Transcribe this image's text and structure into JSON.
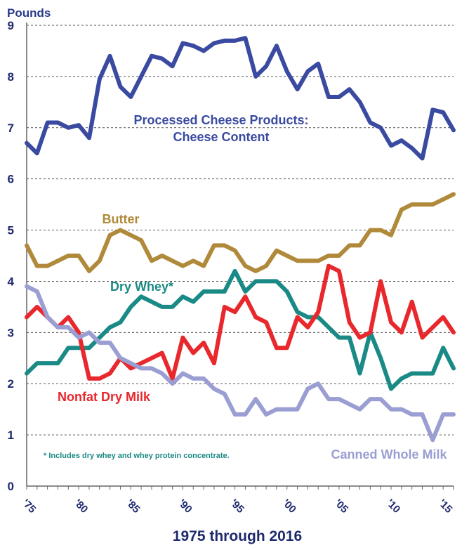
{
  "chart_data": {
    "type": "line",
    "ylabel": "Pounds",
    "xlabel": "1975 through 2016",
    "ylim": [
      0,
      9
    ],
    "xlim": [
      1975,
      2016
    ],
    "grid": true,
    "yticks": [
      "0",
      "1",
      "2",
      "3",
      "4",
      "5",
      "6",
      "7",
      "8",
      "9"
    ],
    "xticks": [
      {
        "value": 1975,
        "label": "'75"
      },
      {
        "value": 1980,
        "label": "'80"
      },
      {
        "value": 1985,
        "label": "'85"
      },
      {
        "value": 1990,
        "label": "'90"
      },
      {
        "value": 1995,
        "label": "'95"
      },
      {
        "value": 2000,
        "label": "'00"
      },
      {
        "value": 2005,
        "label": "'05"
      },
      {
        "value": 2010,
        "label": "'10"
      },
      {
        "value": 2015,
        "label": "'15"
      }
    ],
    "x": [
      1975,
      1976,
      1977,
      1978,
      1979,
      1980,
      1981,
      1982,
      1983,
      1984,
      1985,
      1986,
      1987,
      1988,
      1989,
      1990,
      1991,
      1992,
      1993,
      1994,
      1995,
      1996,
      1997,
      1998,
      1999,
      2000,
      2001,
      2002,
      2003,
      2004,
      2005,
      2006,
      2007,
      2008,
      2009,
      2010,
      2011,
      2012,
      2013,
      2014,
      2015,
      2016
    ],
    "series": [
      {
        "name": "Processed Cheese Products: Cheese Content",
        "label_lines": [
          "Processed Cheese Products:",
          "Cheese Content"
        ],
        "color": "#3a4aa0",
        "values": [
          6.7,
          6.5,
          7.1,
          7.1,
          7.0,
          7.05,
          6.8,
          7.95,
          8.4,
          7.8,
          7.6,
          8.0,
          8.4,
          8.35,
          8.2,
          8.65,
          8.6,
          8.5,
          8.65,
          8.7,
          8.7,
          8.75,
          8.0,
          8.2,
          8.6,
          8.1,
          7.75,
          8.1,
          8.25,
          7.6,
          7.6,
          7.75,
          7.5,
          7.1,
          7.0,
          6.65,
          6.75,
          6.6,
          6.4,
          7.35,
          7.3,
          6.95
        ]
      },
      {
        "name": "Butter",
        "label_lines": [
          "Butter"
        ],
        "color": "#b08a3a",
        "values": [
          4.7,
          4.3,
          4.3,
          4.4,
          4.5,
          4.5,
          4.2,
          4.4,
          4.9,
          5.0,
          4.9,
          4.8,
          4.4,
          4.5,
          4.4,
          4.3,
          4.4,
          4.3,
          4.7,
          4.7,
          4.6,
          4.3,
          4.2,
          4.3,
          4.6,
          4.5,
          4.4,
          4.4,
          4.4,
          4.5,
          4.5,
          4.7,
          4.7,
          5.0,
          5.0,
          4.9,
          5.4,
          5.5,
          5.5,
          5.5,
          5.6,
          5.7
        ]
      },
      {
        "name": "Dry Whey*",
        "label_lines": [
          "Dry Whey*"
        ],
        "color": "#1a8a86",
        "values": [
          2.2,
          2.4,
          2.4,
          2.4,
          2.7,
          2.7,
          2.7,
          2.9,
          3.1,
          3.2,
          3.5,
          3.7,
          3.6,
          3.5,
          3.5,
          3.7,
          3.6,
          3.8,
          3.8,
          3.8,
          4.2,
          3.8,
          4.0,
          4.0,
          4.0,
          3.8,
          3.4,
          3.3,
          3.3,
          3.1,
          2.9,
          2.9,
          2.2,
          3.0,
          2.5,
          1.9,
          2.1,
          2.2,
          2.2,
          2.2,
          2.7,
          2.3
        ]
      },
      {
        "name": "Nonfat Dry Milk",
        "label_lines": [
          "Nonfat Dry Milk"
        ],
        "color": "#e8282c",
        "values": [
          3.3,
          3.5,
          3.3,
          3.1,
          3.3,
          3.0,
          2.1,
          2.1,
          2.2,
          2.5,
          2.3,
          2.4,
          2.5,
          2.6,
          2.1,
          2.9,
          2.6,
          2.8,
          2.4,
          3.5,
          3.4,
          3.7,
          3.3,
          3.2,
          2.7,
          2.7,
          3.3,
          3.1,
          3.4,
          4.3,
          4.2,
          3.2,
          2.9,
          3.0,
          4.0,
          3.2,
          3.0,
          3.6,
          2.9,
          3.1,
          3.3,
          3.0
        ]
      },
      {
        "name": "Canned Whole Milk",
        "label_lines": [
          "Canned Whole Milk"
        ],
        "color": "#9a9ed2",
        "values": [
          3.9,
          3.8,
          3.3,
          3.1,
          3.1,
          2.9,
          3.0,
          2.8,
          2.8,
          2.5,
          2.4,
          2.3,
          2.3,
          2.2,
          2.0,
          2.2,
          2.1,
          2.1,
          1.9,
          1.8,
          1.4,
          1.4,
          1.7,
          1.4,
          1.5,
          1.5,
          1.5,
          1.9,
          2.0,
          1.7,
          1.7,
          1.6,
          1.5,
          1.7,
          1.7,
          1.5,
          1.5,
          1.4,
          1.4,
          0.9,
          1.4,
          1.4
        ]
      }
    ],
    "footnote": "* Includes dry whey and whey protein concentrate.",
    "footnote_color": "#1a8a86"
  }
}
